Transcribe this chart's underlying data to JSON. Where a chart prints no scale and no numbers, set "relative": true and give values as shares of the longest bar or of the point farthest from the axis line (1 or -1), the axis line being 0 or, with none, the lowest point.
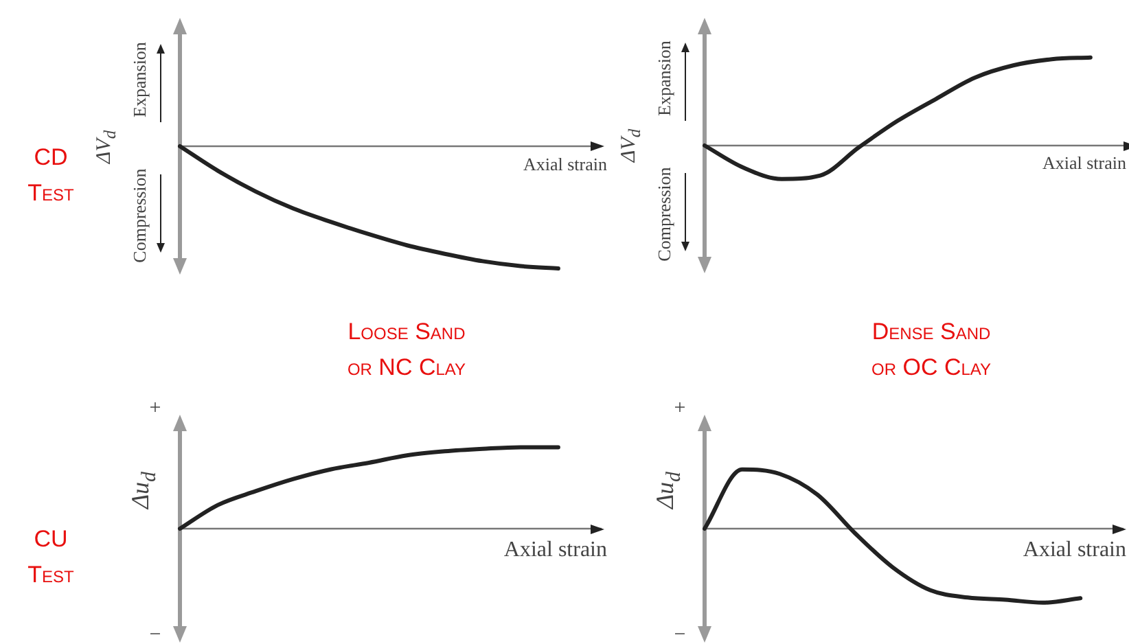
{
  "chart_data": [
    {
      "type": "line",
      "relative": true,
      "xlabel": "Axial strain",
      "ylabel": "ΔV$_{d}$",
      "annotations": [
        "Expansion",
        "Compression",
        "CD\nTest"
      ],
      "categories": [
        null,
        null,
        null,
        null,
        null,
        null,
        null,
        null,
        null,
        null,
        null,
        null
      ],
      "series": [
        {
          "color": "#222222",
          "values": [
            0,
            -0.2,
            -0.37,
            -0.51,
            -0.62,
            -0.72,
            -0.81,
            -0.88,
            -0.94,
            -0.98,
            -1,
            null
          ]
        }
      ]
    },
    {
      "type": "line",
      "relative": true,
      "xlabel": "Axial strain",
      "ylabel": "ΔV$_{d}$",
      "annotations": [
        "Expansion",
        "Compression"
      ],
      "categories": [
        null,
        null,
        null,
        null,
        null,
        null,
        null,
        null,
        null,
        null,
        null,
        null
      ],
      "series": [
        {
          "color": "#222222",
          "values": [
            0,
            -0.25,
            -0.38,
            -0.34,
            -0.02,
            0.28,
            0.53,
            0.77,
            0.91,
            0.98,
            1,
            null
          ]
        }
      ]
    },
    {
      "type": "line",
      "relative": true,
      "title": "Loose Sand\nor NC Clay",
      "xlabel": "Axial strain",
      "ylabel": "Δu$_{d}$",
      "annotations": [
        "+",
        "−",
        "CU\nTest"
      ],
      "categories": [
        null,
        null,
        null,
        null,
        null,
        null,
        null,
        null,
        null,
        null,
        null,
        null
      ],
      "series": [
        {
          "color": "#222222",
          "values": [
            0,
            0.29,
            0.46,
            0.61,
            0.73,
            0.81,
            0.9,
            0.95,
            0.98,
            1,
            1,
            null
          ]
        }
      ]
    },
    {
      "type": "line",
      "relative": true,
      "title": "Dense Sand\nor OC Clay",
      "xlabel": "Axial strain",
      "ylabel": "Δu$_{d}$",
      "annotations": [
        "+",
        "−"
      ],
      "categories": [
        null,
        null,
        null,
        null,
        null,
        null,
        null,
        null,
        null,
        null,
        null,
        null
      ],
      "series": [
        {
          "color": "#222222",
          "values": [
            0,
            0.8,
            0.74,
            0.46,
            -0.06,
            -0.52,
            -0.83,
            -0.93,
            -0.96,
            -1,
            -0.94,
            null
          ]
        }
      ]
    }
  ]
}
